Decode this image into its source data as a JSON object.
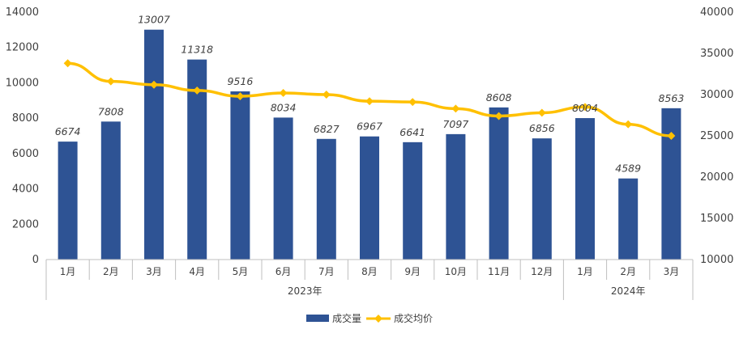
{
  "chart_data": {
    "type": "bar",
    "categories": [
      "1月",
      "2月",
      "3月",
      "4月",
      "5月",
      "6月",
      "7月",
      "8月",
      "9月",
      "10月",
      "11月",
      "12月",
      "1月",
      "2月",
      "3月"
    ],
    "groups": [
      {
        "label": "2023年",
        "span": [
          0,
          11
        ]
      },
      {
        "label": "2024年",
        "span": [
          12,
          14
        ]
      }
    ],
    "series": [
      {
        "name": "成交量",
        "type": "bar",
        "axis": "left",
        "color": "#2E5394",
        "values": [
          6674,
          7808,
          13007,
          11318,
          9516,
          8034,
          6827,
          6967,
          6641,
          7097,
          8608,
          6856,
          8004,
          4589,
          8563
        ],
        "labels": [
          "6674",
          "7808",
          "13007",
          "11318",
          "9516",
          "8034",
          "6827",
          "6967",
          "6641",
          "7097",
          "8608",
          "6856",
          "8004",
          "4589",
          "8563"
        ]
      },
      {
        "name": "成交均价",
        "type": "line",
        "axis": "right",
        "color": "#FFC000",
        "values": [
          33800,
          31600,
          31200,
          30500,
          29800,
          30200,
          30000,
          29200,
          29100,
          28300,
          27400,
          27800,
          28500,
          26400,
          25000
        ]
      }
    ],
    "y_left": {
      "min": 0,
      "max": 14000,
      "ticks": [
        "0",
        "2000",
        "4000",
        "6000",
        "8000",
        "10000",
        "12000",
        "14000"
      ]
    },
    "y_right": {
      "min": 10000,
      "max": 40000,
      "ticks": [
        "10000",
        "15000",
        "20000",
        "25000",
        "30000",
        "35000",
        "40000"
      ]
    },
    "grid": false,
    "legend_position": "bottom",
    "title": ""
  }
}
